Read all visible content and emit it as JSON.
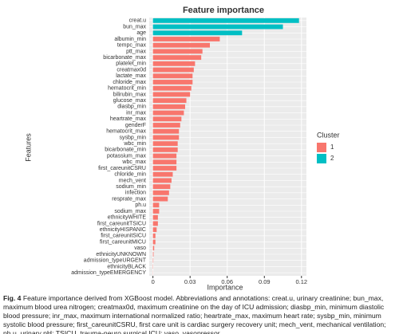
{
  "chart_data": {
    "type": "bar",
    "orientation": "horizontal",
    "title": "Feature importance",
    "x_label": "Importance",
    "y_label": "Features",
    "legend_title": "Cluster",
    "legend_position": "right",
    "grid": true,
    "categories": [
      "creat.u",
      "bun_max",
      "age",
      "albumin_min",
      "tempc_max",
      "ptt_max",
      "bicarbonate_max",
      "platelet_min",
      "creatmax0d",
      "lactate_max",
      "chloride_max",
      "hematocrit_min",
      "bilirubin_max",
      "glucose_max",
      "diasbp_min",
      "inr_max",
      "heartrate_max",
      "genderF",
      "hematocrit_max",
      "sysbp_min",
      "wbc_min",
      "bicarbonate_min",
      "potassium_max",
      "wbc_max",
      "first_careunitCSRU",
      "chloride_min",
      "mech_vent",
      "sodium_min",
      "infection",
      "resprate_max",
      "ph.u",
      "sodium_max",
      "ethnicityWHITE",
      "first_careunitTSICU",
      "ethnicityHISPANIC",
      "first_careunitSICU",
      "first_careunitMICU",
      "vaso",
      "ethnicityUNKNOWN",
      "admission_typeURGENT",
      "ethnicityBLACK",
      "admission_typeEMERGENCY"
    ],
    "series": [
      {
        "name": "1",
        "color": "#f8766d",
        "values": [
          null,
          null,
          null,
          0.054,
          0.046,
          0.04,
          0.039,
          0.034,
          0.033,
          0.032,
          0.032,
          0.031,
          0.03,
          0.027,
          0.026,
          0.025,
          0.023,
          0.022,
          0.021,
          0.021,
          0.02,
          0.02,
          0.019,
          0.019,
          0.019,
          0.016,
          0.015,
          0.014,
          0.013,
          0.012,
          0.005,
          0.005,
          0.004,
          0.004,
          0.003,
          0.002,
          0.002,
          0.001,
          0.0005,
          0.0003,
          0.0002,
          0.0001
        ]
      },
      {
        "name": "2",
        "color": "#00bfc4",
        "values": [
          0.118,
          0.105,
          0.072,
          null,
          null,
          null,
          null,
          null,
          null,
          null,
          null,
          null,
          null,
          null,
          null,
          null,
          null,
          null,
          null,
          null,
          null,
          null,
          null,
          null,
          null,
          null,
          null,
          null,
          null,
          null,
          null,
          null,
          null,
          null,
          null,
          null,
          null,
          null,
          null,
          null,
          null,
          null
        ]
      }
    ],
    "xlim": [
      -0.003,
      0.124
    ],
    "xticks": [
      0,
      {
        "value": 0.03,
        "label": "0.03"
      },
      {
        "value": 0.06,
        "label": "0.06"
      },
      {
        "value": 0.09,
        "label": "0.09"
      },
      {
        "value": 0.12,
        "label": "0.12"
      }
    ]
  },
  "caption": {
    "label": "Fig. 4",
    "text": "Feature importance derived from XGBoost model. Abbreviations and annotations: creat.u, urinary creatinine; bun_max, maximum blood urea nitrogen; creatmax0d, maximum creatinine on the day of ICU admission; diasbp_min, minimum diastolic blood pressure; inr_max, maximum international normalized ratio; heartrate_max, maximum heart rate; sysbp_min, minimum systolic blood pressure; first_careunitCSRU, first care unit is cardiac surgery recovery unit; mech_vent, mechanical ventilation; ph.u, urinary pH; TSICU, trauma-neuro surgical ICU; vaso, vasopressor"
  }
}
